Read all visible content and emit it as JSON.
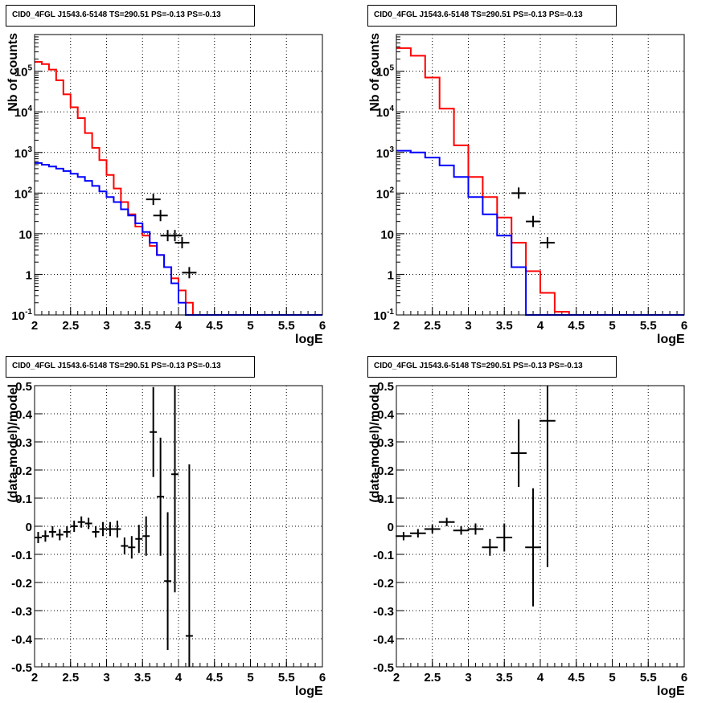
{
  "panels": [
    {
      "id": "counts-binned-fine",
      "title": "CID0_4FGL J1543.6-5148 TS=290.51 PS=-0.13 PS=-0.13",
      "chart_data": {
        "type": "line",
        "xlabel": "logE",
        "ylabel": "Nb of counts",
        "xlim": [
          2,
          6
        ],
        "ylim": [
          0.1,
          800000
        ],
        "yscale": "log",
        "grid": true,
        "x_ticks": [
          "2",
          "2.5",
          "3",
          "3.5",
          "4",
          "4.5",
          "5",
          "5.5",
          "6"
        ],
        "y_ticks": [
          "10^{-1}",
          "1",
          "10",
          "10^{2}",
          "10^{3}",
          "10^{4}",
          "10^{5}"
        ],
        "bin_edges": [
          2.0,
          2.1,
          2.2,
          2.3,
          2.4,
          2.5,
          2.6,
          2.7,
          2.8,
          2.9,
          3.0,
          3.1,
          3.2,
          3.3,
          3.4,
          3.5,
          3.6,
          3.7,
          3.8,
          3.9,
          4.0,
          4.1,
          4.2,
          4.3,
          4.4,
          4.5,
          4.6,
          4.7,
          4.8,
          4.9,
          5.0,
          5.1,
          5.2,
          5.3,
          5.4,
          5.5,
          5.6,
          5.7,
          5.8,
          5.9,
          6.0
        ],
        "series": [
          {
            "color": "#ff0000",
            "values": [
              170000,
              150000,
              110000,
              60000,
              27000,
              13000,
              7000,
              3000,
              1300,
              650,
              280,
              130,
              60,
              30,
              15,
              9,
              5,
              3,
              1.5,
              0.8,
              0.4,
              0.2,
              0.1,
              0.1,
              0.1,
              0.1,
              0.1,
              0.1,
              0.1,
              0.1,
              0.1,
              0.1,
              0.1,
              0.1,
              0.1,
              0.1,
              0.1,
              0.1,
              0.1,
              0.1
            ]
          },
          {
            "color": "#0000ff",
            "values": [
              550,
              500,
              450,
              400,
              350,
              300,
              250,
              200,
              150,
              110,
              80,
              60,
              40,
              28,
              18,
              11,
              6,
              3,
              1.5,
              0.6,
              0.2,
              0.1,
              0.1,
              0.1,
              0.1,
              0.1,
              0.1,
              0.1,
              0.1,
              0.1,
              0.1,
              0.1,
              0.1,
              0.1,
              0.1,
              0.1,
              0.1,
              0.1,
              0.1,
              0.1
            ]
          },
          {
            "color": "#000000",
            "style": "points",
            "x": [
              3.65,
              3.75,
              3.85,
              3.95,
              4.05,
              4.15
            ],
            "y": [
              70,
              28,
              9,
              9,
              6,
              1.1
            ]
          }
        ]
      }
    },
    {
      "id": "counts-binned-coarse",
      "title": "CID0_4FGL J1543.6-5148 TS=290.51 PS=-0.13 PS=-0.13",
      "chart_data": {
        "type": "line",
        "xlabel": "logE",
        "ylabel": "Nb of counts",
        "xlim": [
          2,
          6
        ],
        "ylim": [
          0.1,
          800000
        ],
        "yscale": "log",
        "grid": true,
        "x_ticks": [
          "2",
          "2.5",
          "3",
          "3.5",
          "4",
          "4.5",
          "5",
          "5.5",
          "6"
        ],
        "y_ticks": [
          "10^{-1}",
          "1",
          "10",
          "10^{2}",
          "10^{3}",
          "10^{4}",
          "10^{5}"
        ],
        "bin_edges": [
          2.0,
          2.2,
          2.4,
          2.6,
          2.8,
          3.0,
          3.2,
          3.4,
          3.6,
          3.8,
          4.0,
          4.2,
          4.4,
          4.6,
          4.8,
          5.0,
          5.2,
          5.4,
          5.6,
          5.8,
          6.0
        ],
        "series": [
          {
            "color": "#ff0000",
            "values": [
              370000,
              240000,
              70000,
              12000,
              1500,
              250,
              80,
              25,
              6,
              1.2,
              0.35,
              0.12,
              0.1,
              0.1,
              0.1,
              0.1,
              0.1,
              0.1,
              0.1,
              0.1
            ]
          },
          {
            "color": "#0000ff",
            "values": [
              1100,
              1000,
              750,
              480,
              250,
              80,
              30,
              9,
              1.5,
              0.1,
              0.1,
              0.1,
              0.1,
              0.1,
              0.1,
              0.1,
              0.1,
              0.1,
              0.1,
              0.1
            ]
          },
          {
            "color": "#000000",
            "style": "points",
            "x": [
              3.7,
              3.9,
              4.1
            ],
            "y": [
              100,
              20,
              6
            ]
          }
        ]
      }
    },
    {
      "id": "residuals-binned-fine",
      "title": "CID0_4FGL J1543.6-5148 TS=290.51 PS=-0.13 PS=-0.13",
      "chart_data": {
        "type": "scatter",
        "xlabel": "logE",
        "ylabel": "(data-model)/model",
        "xlim": [
          2,
          6
        ],
        "ylim": [
          -0.5,
          0.5
        ],
        "grid": true,
        "x_ticks": [
          "2",
          "2.5",
          "3",
          "3.5",
          "4",
          "4.5",
          "5",
          "5.5",
          "6"
        ],
        "y_ticks": [
          "-0.5",
          "-0.4",
          "-0.3",
          "-0.2",
          "-0.1",
          "0",
          "0.1",
          "0.2",
          "0.3",
          "0.4",
          "0.5"
        ],
        "points": [
          {
            "x": 2.05,
            "y": -0.04,
            "err": 0.02
          },
          {
            "x": 2.15,
            "y": -0.035,
            "err": 0.02
          },
          {
            "x": 2.25,
            "y": -0.02,
            "err": 0.02
          },
          {
            "x": 2.35,
            "y": -0.03,
            "err": 0.02
          },
          {
            "x": 2.45,
            "y": -0.02,
            "err": 0.02
          },
          {
            "x": 2.55,
            "y": 0.0,
            "err": 0.02
          },
          {
            "x": 2.65,
            "y": 0.015,
            "err": 0.02
          },
          {
            "x": 2.75,
            "y": 0.01,
            "err": 0.02
          },
          {
            "x": 2.85,
            "y": -0.02,
            "err": 0.02
          },
          {
            "x": 2.95,
            "y": -0.01,
            "err": 0.025
          },
          {
            "x": 3.05,
            "y": -0.01,
            "err": 0.025
          },
          {
            "x": 3.15,
            "y": -0.01,
            "err": 0.03
          },
          {
            "x": 3.25,
            "y": -0.07,
            "err": 0.03
          },
          {
            "x": 3.35,
            "y": -0.075,
            "err": 0.04
          },
          {
            "x": 3.45,
            "y": -0.045,
            "err": 0.05
          },
          {
            "x": 3.55,
            "y": -0.035,
            "err": 0.07
          },
          {
            "x": 3.65,
            "y": 0.335,
            "err": 0.16
          },
          {
            "x": 3.75,
            "y": 0.105,
            "err": 0.21
          },
          {
            "x": 3.85,
            "y": -0.195,
            "err": 0.245
          },
          {
            "x": 3.95,
            "y": 0.185,
            "err": 0.42
          },
          {
            "x": 4.15,
            "y": -0.39,
            "err": 0.61
          }
        ]
      }
    },
    {
      "id": "residuals-binned-coarse",
      "title": "CID0_4FGL J1543.6-5148 TS=290.51 PS=-0.13 PS=-0.13",
      "chart_data": {
        "type": "scatter",
        "xlabel": "logE",
        "ylabel": "(data-model)/model",
        "xlim": [
          2,
          6
        ],
        "ylim": [
          -0.5,
          0.5
        ],
        "grid": true,
        "x_ticks": [
          "2",
          "2.5",
          "3",
          "3.5",
          "4",
          "4.5",
          "5",
          "5.5",
          "6"
        ],
        "y_ticks": [
          "-0.5",
          "-0.4",
          "-0.3",
          "-0.2",
          "-0.1",
          "0",
          "0.1",
          "0.2",
          "0.3",
          "0.4",
          "0.5"
        ],
        "points": [
          {
            "x": 2.1,
            "y": -0.035,
            "err": 0.015
          },
          {
            "x": 2.3,
            "y": -0.025,
            "err": 0.015
          },
          {
            "x": 2.5,
            "y": -0.01,
            "err": 0.015
          },
          {
            "x": 2.7,
            "y": 0.015,
            "err": 0.015
          },
          {
            "x": 2.9,
            "y": -0.015,
            "err": 0.015
          },
          {
            "x": 3.1,
            "y": -0.01,
            "err": 0.02
          },
          {
            "x": 3.3,
            "y": -0.075,
            "err": 0.03
          },
          {
            "x": 3.5,
            "y": -0.04,
            "err": 0.05
          },
          {
            "x": 3.7,
            "y": 0.26,
            "err": 0.12
          },
          {
            "x": 3.9,
            "y": -0.075,
            "err": 0.21
          },
          {
            "x": 4.1,
            "y": 0.375,
            "err": 0.52
          }
        ]
      }
    }
  ]
}
